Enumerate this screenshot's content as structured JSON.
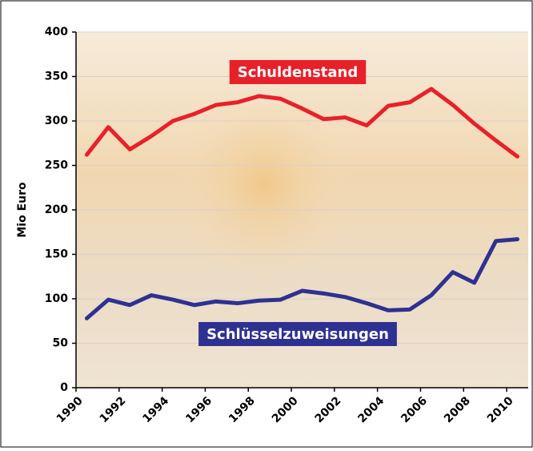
{
  "chart_data": {
    "type": "line",
    "y_label": "Mio Euro",
    "x": [
      1990.5,
      1991.5,
      1992.5,
      1993.5,
      1994.5,
      1995.5,
      1996.5,
      1997.5,
      1998.5,
      1999.5,
      2000.5,
      2001.5,
      2002.5,
      2003.5,
      2004.5,
      2005.5,
      2006.5,
      2007.5,
      2008.5,
      2009.5,
      2010.5
    ],
    "series": [
      {
        "name": "Schuldenstand",
        "color": "#e8202a",
        "values": [
          262,
          293,
          268,
          283,
          300,
          308,
          318,
          321,
          328,
          325,
          314,
          302,
          304,
          295,
          317,
          321,
          336,
          318,
          297,
          278,
          260
        ]
      },
      {
        "name": "Schlüsselzuweisungen",
        "color": "#2e3192",
        "values": [
          78,
          99,
          93,
          104,
          99,
          93,
          97,
          95,
          98,
          99,
          109,
          106,
          102,
          95,
          87,
          88,
          104,
          130,
          118,
          165,
          167
        ]
      }
    ],
    "xlim": [
      1990,
      2011
    ],
    "xticks": [
      1990,
      1992,
      1994,
      1996,
      1998,
      2000,
      2002,
      2004,
      2006,
      2008,
      2010
    ],
    "ylim": [
      0,
      400
    ],
    "yticks": [
      0,
      50,
      100,
      150,
      200,
      250,
      300,
      350,
      400
    ],
    "grid": true
  }
}
